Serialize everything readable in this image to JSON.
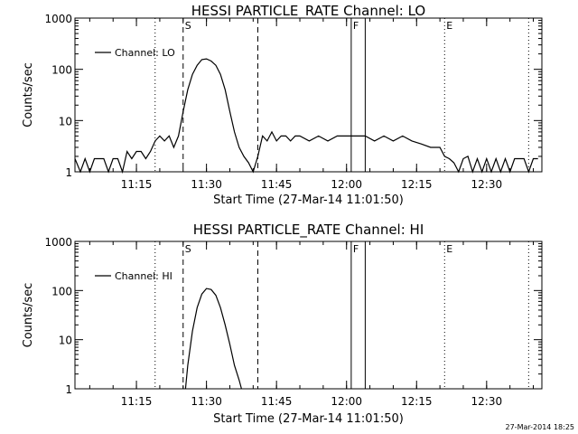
{
  "chart_data": [
    {
      "type": "line",
      "title": "HESSI PARTICLE_RATE Channel: LO",
      "xlabel": "Start Time (27-Mar-14 11:01:50)",
      "ylabel": "Counts/sec",
      "yscale": "log",
      "ylim": [
        1,
        1000
      ],
      "xlim": [
        "11:01:50",
        "12:41:50"
      ],
      "xticks": [
        "11:15",
        "11:30",
        "11:45",
        "12:00",
        "12:15",
        "12:30"
      ],
      "yticks": [
        "1",
        "10",
        "100",
        "1000"
      ],
      "legend": {
        "label": "Channel: LO",
        "placement": "top-left"
      },
      "markers": [
        {
          "label": "S",
          "time": "11:25",
          "style": "dashed"
        },
        {
          "label": "",
          "time": "11:41",
          "style": "dashed"
        },
        {
          "label": "",
          "time": "11:19",
          "style": "dotted"
        },
        {
          "label": "F",
          "time": "12:01",
          "style": "solid"
        },
        {
          "label": "",
          "time": "12:04",
          "style": "solid"
        },
        {
          "label": "E",
          "time": "12:21",
          "style": "dotted"
        },
        {
          "label": "",
          "time": "12:39",
          "style": "dotted"
        }
      ],
      "series": [
        {
          "name": "Channel: LO",
          "x": [
            "11:01:50",
            "11:03",
            "11:04",
            "11:05",
            "11:06",
            "11:07",
            "11:08",
            "11:09",
            "11:10",
            "11:11",
            "11:12",
            "11:13",
            "11:14",
            "11:15",
            "11:16",
            "11:17",
            "11:18",
            "11:19",
            "11:20",
            "11:21",
            "11:22",
            "11:23",
            "11:24",
            "11:25",
            "11:26",
            "11:27",
            "11:28",
            "11:29",
            "11:30",
            "11:31",
            "11:32",
            "11:33",
            "11:34",
            "11:35",
            "11:36",
            "11:37",
            "11:38",
            "11:39",
            "11:40",
            "11:41",
            "11:42",
            "11:43",
            "11:44",
            "11:45",
            "11:46",
            "11:47",
            "11:48",
            "11:49",
            "11:50",
            "11:52",
            "11:54",
            "11:56",
            "11:58",
            "12:00",
            "12:02",
            "12:04",
            "12:06",
            "12:08",
            "12:10",
            "12:12",
            "12:14",
            "12:16",
            "12:18",
            "12:20",
            "12:21",
            "12:22",
            "12:23",
            "12:24",
            "12:25",
            "12:26",
            "12:27",
            "12:28",
            "12:29",
            "12:30",
            "12:31",
            "12:32",
            "12:33",
            "12:34",
            "12:35",
            "12:36",
            "12:37",
            "12:38",
            "12:39",
            "12:40",
            "12:41"
          ],
          "y": [
            1.8,
            1,
            1.8,
            1,
            1.8,
            1.8,
            1.8,
            1,
            1.8,
            1.8,
            1,
            2.5,
            1.8,
            2.5,
            2.5,
            1.8,
            2.5,
            4,
            5,
            4,
            5,
            3,
            5,
            15,
            40,
            80,
            120,
            155,
            160,
            145,
            120,
            80,
            40,
            15,
            6,
            3,
            2,
            1.5,
            1,
            2,
            5,
            4,
            6,
            4,
            5,
            5,
            4,
            5,
            5,
            4,
            5,
            4,
            5,
            5,
            5,
            5,
            4,
            5,
            4,
            5,
            4,
            3.5,
            3,
            3,
            2,
            1.8,
            1.5,
            1,
            1.8,
            2,
            1,
            1.8,
            1,
            1.8,
            1,
            1.8,
            1,
            1.8,
            1,
            1.8,
            1.8,
            1.8,
            1,
            1.8,
            1.8
          ]
        }
      ]
    },
    {
      "type": "line",
      "title": "HESSI PARTICLE_RATE Channel: HI",
      "xlabel": "Start Time (27-Mar-14 11:01:50)",
      "ylabel": "Counts/sec",
      "yscale": "log",
      "ylim": [
        1,
        1000
      ],
      "xlim": [
        "11:01:50",
        "12:41:50"
      ],
      "xticks": [
        "11:15",
        "11:30",
        "11:45",
        "12:00",
        "12:15",
        "12:30"
      ],
      "yticks": [
        "1",
        "10",
        "100",
        "1000"
      ],
      "legend": {
        "label": "Channel: HI",
        "placement": "top-left"
      },
      "markers": [
        {
          "label": "S",
          "time": "11:25",
          "style": "dashed"
        },
        {
          "label": "",
          "time": "11:41",
          "style": "dashed"
        },
        {
          "label": "",
          "time": "11:19",
          "style": "dotted"
        },
        {
          "label": "F",
          "time": "12:01",
          "style": "solid"
        },
        {
          "label": "",
          "time": "12:04",
          "style": "solid"
        },
        {
          "label": "E",
          "time": "12:21",
          "style": "dotted"
        },
        {
          "label": "",
          "time": "12:39",
          "style": "dotted"
        }
      ],
      "series": [
        {
          "name": "Channel: HI",
          "x": [
            "11:25:30",
            "11:26",
            "11:27",
            "11:28",
            "11:29",
            "11:30",
            "11:31",
            "11:32",
            "11:33",
            "11:34",
            "11:35",
            "11:36",
            "11:37",
            "11:37:30"
          ],
          "y": [
            1,
            3,
            15,
            45,
            85,
            110,
            105,
            80,
            45,
            20,
            8,
            3,
            1.5,
            1
          ]
        }
      ]
    }
  ],
  "footer": {
    "timestamp": "27-Mar-2014 18:25"
  }
}
